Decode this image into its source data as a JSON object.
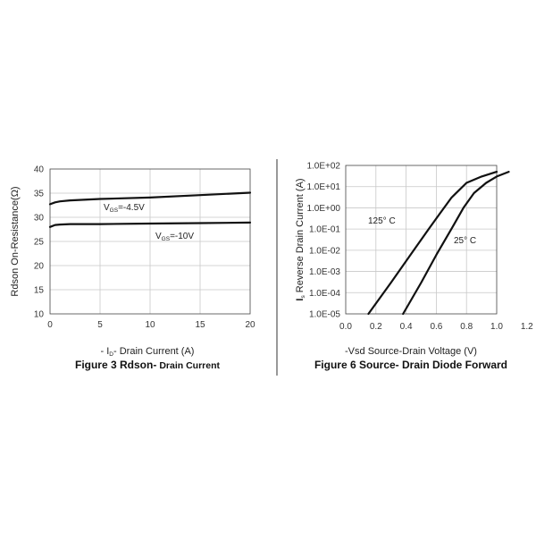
{
  "chart_data": [
    {
      "type": "line",
      "caption_main": "Figure 3 Rdson-",
      "caption_sub": "Drain Current",
      "xlabel_pre": "- I",
      "xlabel_sub": "D",
      "xlabel_post": "- Drain Current (A)",
      "ylabel": "Rdson On-Resistance(Ω)",
      "xlim": [
        0,
        20
      ],
      "ylim": [
        10,
        40
      ],
      "xticks": [
        "0",
        "5",
        "10",
        "15",
        "20"
      ],
      "yticks": [
        "10",
        "15",
        "20",
        "25",
        "30",
        "35",
        "40"
      ],
      "grid": true,
      "series": [
        {
          "label_pre": "V",
          "label_sub": "GS",
          "label_post": "=-4.5V",
          "x": [
            0,
            0.5,
            1,
            2,
            5,
            10,
            15,
            20
          ],
          "y": [
            32.7,
            33.1,
            33.3,
            33.5,
            33.8,
            34.1,
            34.6,
            35.1
          ]
        },
        {
          "label_pre": "V",
          "label_sub": "GS",
          "label_post": "=-10V",
          "x": [
            0,
            0.5,
            1,
            2,
            5,
            10,
            15,
            20
          ],
          "y": [
            28.0,
            28.4,
            28.5,
            28.6,
            28.6,
            28.7,
            28.8,
            28.9
          ]
        }
      ]
    },
    {
      "type": "line",
      "caption_main": "Figure 6 Source- Drain Diode Forward",
      "xlabel": "-Vsd Source-Drain Voltage (V)",
      "ylabel_pre": "I",
      "ylabel_sub": "s",
      "ylabel_post": " Reverse Drain Current (A)",
      "xlim": [
        0,
        1.2
      ],
      "y_scale": "log",
      "ylim": [
        1e-05,
        100
      ],
      "xticks": [
        "0.0",
        "0.2",
        "0.4",
        "0.6",
        "0.8",
        "1.0",
        "1.2"
      ],
      "yticks": [
        "1.0E-05",
        "1.0E-04",
        "1.0E-03",
        "1.0E-02",
        "1.0E-01",
        "1.0E+00",
        "1.0E+01",
        "1.0E+02"
      ],
      "grid": true,
      "series": [
        {
          "label": "125° C",
          "x": [
            0.15,
            0.3,
            0.45,
            0.55,
            0.62,
            0.7,
            0.8,
            0.9,
            1.0
          ],
          "y": [
            1e-05,
            0.0003,
            0.01,
            0.1,
            0.5,
            3,
            15,
            30,
            50
          ]
        },
        {
          "label": "25° C",
          "x": [
            0.38,
            0.5,
            0.6,
            0.7,
            0.78,
            0.85,
            0.93,
            1.0,
            1.08
          ],
          "y": [
            1e-05,
            0.0003,
            0.006,
            0.1,
            1,
            5,
            15,
            30,
            50
          ]
        }
      ]
    }
  ]
}
